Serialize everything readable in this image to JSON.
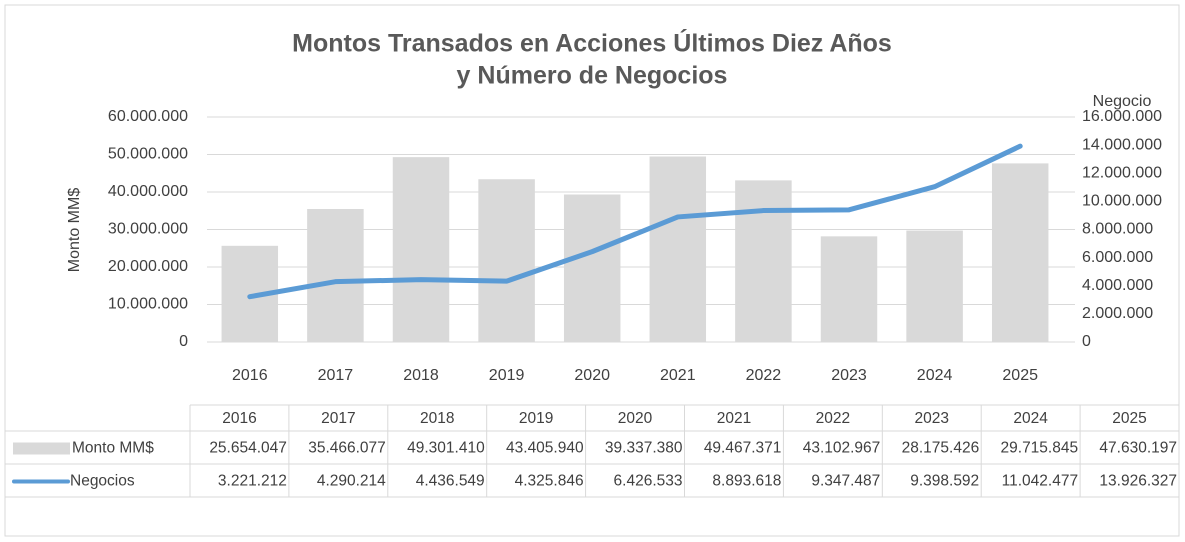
{
  "chart_data": {
    "type": "bar-line",
    "title": [
      "Montos Transados en Acciones Últimos Diez Años",
      "y Número de Negocios"
    ],
    "y_label": "Monto MM$",
    "y2_label": "Negocio",
    "categories": [
      "2016",
      "2017",
      "2018",
      "2019",
      "2020",
      "2021",
      "2022",
      "2023",
      "2024",
      "2025"
    ],
    "series": [
      {
        "name": "Monto MM$",
        "type": "bar",
        "color": "#d9d9d9",
        "values": [
          25654047,
          35466077,
          49301410,
          43405940,
          39337380,
          49467371,
          43102967,
          28175426,
          29715845,
          47630197
        ],
        "value_labels": [
          "25.654.047",
          "35.466.077",
          "49.301.410",
          "43.405.940",
          "39.337.380",
          "49.467.371",
          "43.102.967",
          "28.175.426",
          "29.715.845",
          "47.630.197"
        ]
      },
      {
        "name": "Negocios",
        "type": "line",
        "axis": "y2",
        "color": "#5b9bd5",
        "values": [
          3221212,
          4290214,
          4436549,
          4325846,
          6426533,
          8893618,
          9347487,
          9398592,
          11042477,
          13926327
        ],
        "value_labels": [
          "3.221.212",
          "4.290.214",
          "4.436.549",
          "4.325.846",
          "6.426.533",
          "8.893.618",
          "9.347.487",
          "9.398.592",
          "11.042.477",
          "13.926.327"
        ]
      }
    ],
    "ylim": [
      0,
      60000000
    ],
    "yticks": [
      0,
      {
        "value": 10000000,
        "label": "10.000.000"
      },
      {
        "value": 20000000,
        "label": "20.000.000"
      },
      {
        "value": 30000000,
        "label": "30.000.000"
      },
      {
        "value": 40000000,
        "label": "40.000.000"
      },
      {
        "value": 50000000,
        "label": "50.000.000"
      },
      {
        "value": 60000000,
        "label": "60.000.000"
      }
    ],
    "y2lim": [
      0,
      16000000
    ],
    "y2ticks": [
      0,
      {
        "value": 2000000,
        "label": "2.000.000"
      },
      {
        "value": 4000000,
        "label": "4.000.000"
      },
      {
        "value": 6000000,
        "label": "6.000.000"
      },
      {
        "value": 8000000,
        "label": "8.000.000"
      },
      {
        "value": 10000000,
        "label": "10.000.000"
      },
      {
        "value": 12000000,
        "label": "12.000.000"
      },
      {
        "value": 14000000,
        "label": "14.000.000"
      },
      {
        "value": 16000000,
        "label": "16.000.000"
      }
    ],
    "grid": true,
    "data_table": true
  }
}
